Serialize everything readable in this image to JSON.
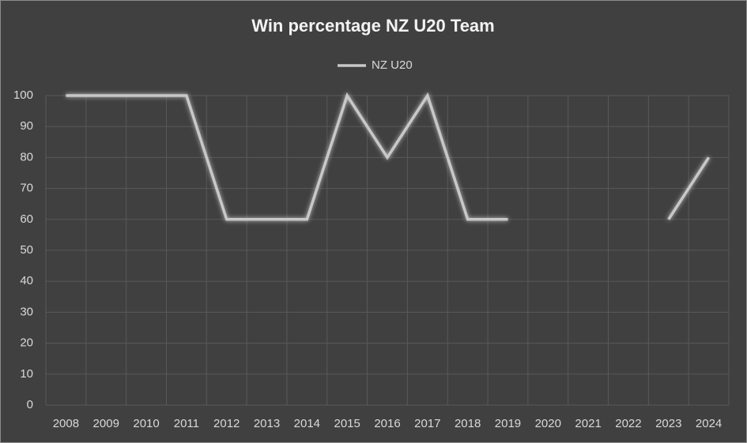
{
  "chart_data": {
    "type": "line",
    "title": "Win percentage NZ U20 Team",
    "categories": [
      "2008",
      "2009",
      "2010",
      "2011",
      "2012",
      "2013",
      "2014",
      "2015",
      "2016",
      "2017",
      "2018",
      "2019",
      "2020",
      "2021",
      "2022",
      "2023",
      "2024"
    ],
    "series": [
      {
        "name": "NZ U20",
        "color": "#c8c8c8",
        "values": [
          100,
          100,
          100,
          100,
          60,
          60,
          60,
          100,
          80,
          100,
          60,
          60,
          null,
          null,
          null,
          60,
          80
        ]
      }
    ],
    "ylim": [
      0,
      100
    ],
    "yticks": [
      0,
      10,
      20,
      30,
      40,
      50,
      60,
      70,
      80,
      90,
      100
    ],
    "grid": true,
    "legend": "top"
  }
}
